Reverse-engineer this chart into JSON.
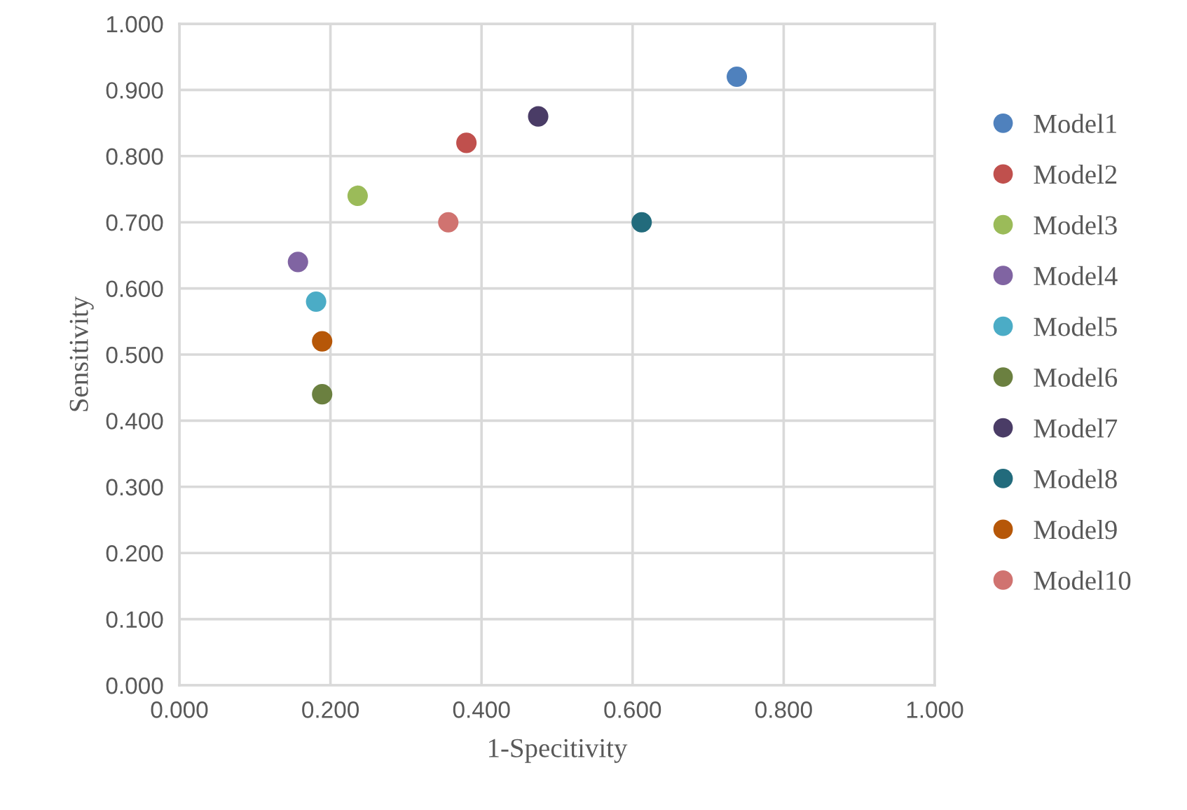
{
  "chart_data": {
    "type": "scatter",
    "xlabel": "1-Specitivity",
    "ylabel": "Sensitivity",
    "xlim": [
      0,
      1
    ],
    "ylim": [
      0,
      1
    ],
    "xticks": [
      {
        "value": 0,
        "label": "0.000"
      },
      {
        "value": 0.2,
        "label": "0.200"
      },
      {
        "value": 0.4,
        "label": "0.400"
      },
      {
        "value": 0.6,
        "label": "0.600"
      },
      {
        "value": 0.8,
        "label": "0.800"
      },
      {
        "value": 1,
        "label": "1.000"
      }
    ],
    "yticks": [
      {
        "value": 0,
        "label": "0.000"
      },
      {
        "value": 0.1,
        "label": "0.100"
      },
      {
        "value": 0.2,
        "label": "0.200"
      },
      {
        "value": 0.3,
        "label": "0.300"
      },
      {
        "value": 0.4,
        "label": "0.400"
      },
      {
        "value": 0.5,
        "label": "0.500"
      },
      {
        "value": 0.6,
        "label": "0.600"
      },
      {
        "value": 0.7,
        "label": "0.700"
      },
      {
        "value": 0.8,
        "label": "0.800"
      },
      {
        "value": 0.9,
        "label": "0.900"
      },
      {
        "value": 1,
        "label": "1.000"
      }
    ],
    "grid": true,
    "legend": "right",
    "marker": "circle",
    "series": [
      {
        "name": "Model1",
        "color": "#4f81bd",
        "x": [
          0.738
        ],
        "values": [
          0.92
        ]
      },
      {
        "name": "Model2",
        "color": "#c0504d",
        "x": [
          0.38
        ],
        "values": [
          0.82
        ]
      },
      {
        "name": "Model3",
        "color": "#9bbb59",
        "x": [
          0.236
        ],
        "values": [
          0.74
        ]
      },
      {
        "name": "Model4",
        "color": "#8064a2",
        "x": [
          0.157
        ],
        "values": [
          0.64
        ]
      },
      {
        "name": "Model5",
        "color": "#4bacc6",
        "x": [
          0.181
        ],
        "values": [
          0.58
        ]
      },
      {
        "name": "Model6",
        "color": "#6b8040",
        "x": [
          0.189
        ],
        "values": [
          0.44
        ]
      },
      {
        "name": "Model7",
        "color": "#4a3c66",
        "x": [
          0.475
        ],
        "values": [
          0.86
        ]
      },
      {
        "name": "Model8",
        "color": "#226b7c",
        "x": [
          0.612
        ],
        "values": [
          0.7
        ]
      },
      {
        "name": "Model9",
        "color": "#b65708",
        "x": [
          0.189
        ],
        "values": [
          0.52
        ]
      },
      {
        "name": "Model10",
        "color": "#d07370",
        "x": [
          0.356
        ],
        "values": [
          0.7
        ]
      }
    ]
  }
}
